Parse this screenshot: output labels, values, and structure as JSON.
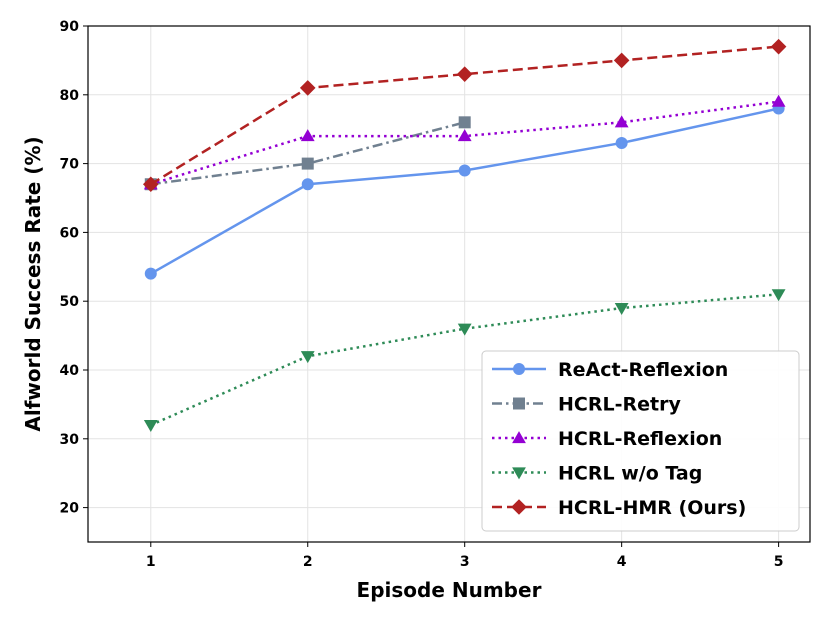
{
  "chart_data": {
    "type": "line",
    "xlabel": "Episode Number",
    "ylabel": "Alfworld Success Rate (%)",
    "x": [
      1,
      2,
      3,
      4,
      5
    ],
    "xlim": [
      0.6,
      5.2
    ],
    "ylim": [
      15,
      90
    ],
    "x_ticks": [
      "1",
      "2",
      "3",
      "4",
      "5"
    ],
    "y_ticks": [
      "20",
      "30",
      "40",
      "50",
      "60",
      "70",
      "80",
      "90"
    ],
    "grid": true,
    "legend_position": "bottom-right",
    "series": [
      {
        "name": "ReAct-Reflexion",
        "x": [
          1,
          2,
          3,
          4,
          5
        ],
        "values": [
          54,
          67,
          69,
          73,
          78
        ],
        "color": "#6495ED",
        "marker": "circle",
        "dash": "solid"
      },
      {
        "name": "HCRL-Retry",
        "x": [
          1,
          2,
          3
        ],
        "values": [
          67,
          70,
          76
        ],
        "color": "#708090",
        "marker": "square",
        "dash": "dashdot"
      },
      {
        "name": "HCRL-Reflexion",
        "x": [
          1,
          2,
          3,
          4,
          5
        ],
        "values": [
          67,
          74,
          74,
          76,
          79
        ],
        "color": "#9400D3",
        "marker": "triangle-up",
        "dash": "dotted"
      },
      {
        "name": "HCRL w/o Tag",
        "x": [
          1,
          2,
          3,
          4,
          5
        ],
        "values": [
          32,
          42,
          46,
          49,
          51
        ],
        "color": "#2E8B57",
        "marker": "triangle-down",
        "dash": "dotted"
      },
      {
        "name": "HCRL-HMR (Ours)",
        "x": [
          1,
          2,
          3,
          4,
          5
        ],
        "values": [
          67,
          81,
          83,
          85,
          87
        ],
        "color": "#B22222",
        "marker": "diamond",
        "dash": "dashed"
      }
    ]
  }
}
